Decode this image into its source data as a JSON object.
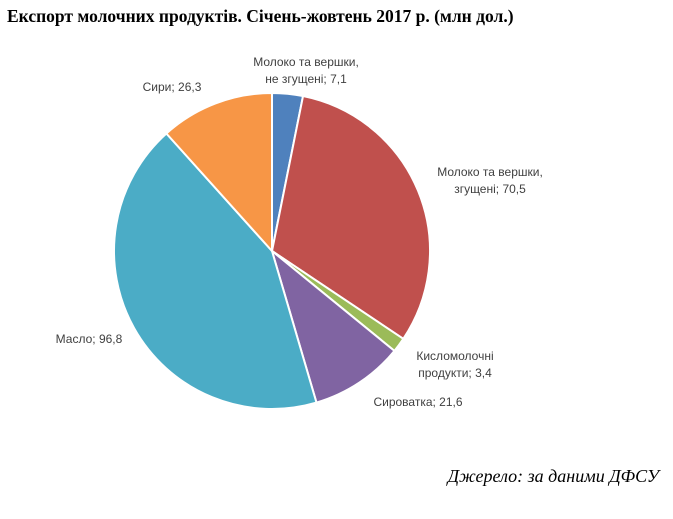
{
  "chart_data": {
    "type": "pie",
    "title": "Експорт молочних продуктів. Січень-жовтень 2017 р. (млн дол.)",
    "slices": [
      {
        "label_lines": [
          "Молоко та вершки,",
          "не згущені;  7,1"
        ],
        "name": "Молоко та вершки, не згущені",
        "value": 7.1,
        "color": "#4F81BD"
      },
      {
        "label_lines": [
          "Молоко та вершки,",
          "згущені;  70,5"
        ],
        "name": "Молоко та вершки, згущені",
        "value": 70.5,
        "color": "#C0504D"
      },
      {
        "label_lines": [
          "Кисломолочні",
          "продукти;  3,4"
        ],
        "name": "Кисломолочні продукти",
        "value": 3.4,
        "color": "#9BBB59"
      },
      {
        "label_lines": [
          "Сироватка;  21,6"
        ],
        "name": "Сироватка",
        "value": 21.6,
        "color": "#8064A2"
      },
      {
        "label_lines": [
          "Масло;  96,8"
        ],
        "name": "Масло",
        "value": 96.8,
        "color": "#4BACC6"
      },
      {
        "label_lines": [
          "Сири;  26,3"
        ],
        "name": "Сири",
        "value": 26.3,
        "color": "#F79646"
      }
    ],
    "legend": "none"
  },
  "source": "Джерело: за даними ДФСУ"
}
